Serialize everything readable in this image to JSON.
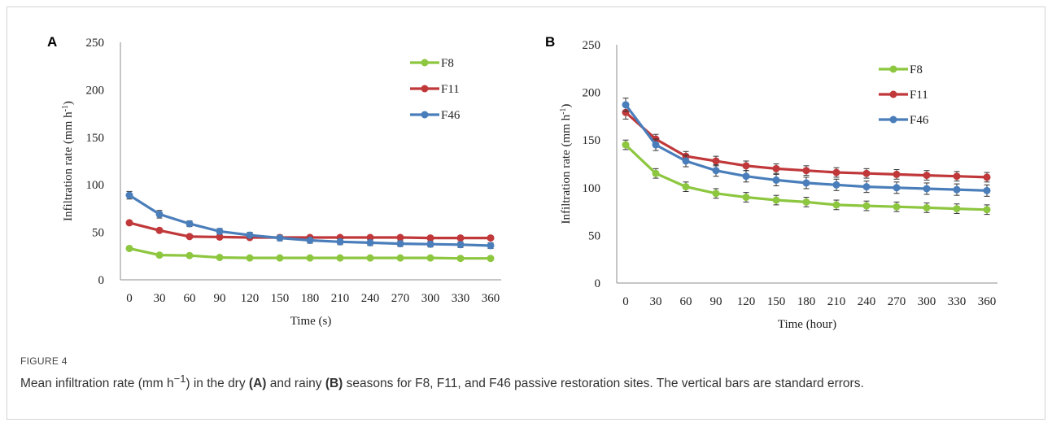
{
  "figure": {
    "label": "FIGURE 4",
    "caption": {
      "t1": "Mean infiltration rate (mm h",
      "sup": "−1",
      "t2": ") in the dry ",
      "bA": "(A)",
      "t3": " and rainy ",
      "bB": "(B)",
      "t4": " seasons for F8, F11, and F46 passive restoration sites. The vertical bars are standard errors."
    }
  },
  "chart_data": [
    {
      "panel": "A",
      "type": "line",
      "xlabel": "Time (s)",
      "ylabel": "Infiltration rate (mm h⁻¹)",
      "x": [
        0,
        30,
        60,
        90,
        120,
        150,
        180,
        210,
        240,
        270,
        300,
        330,
        360
      ],
      "ylim": [
        0,
        250
      ],
      "yticks": [
        0,
        50,
        100,
        150,
        200,
        250
      ],
      "legend": "top-right",
      "grid": false,
      "series": [
        {
          "name": "F8",
          "color": "#8dc63f",
          "values": [
            33,
            26,
            25.5,
            23.5,
            23,
            23,
            23,
            23,
            23,
            23,
            23,
            22.5,
            22.5
          ],
          "errors": [
            0,
            0,
            0,
            0,
            0,
            0,
            0,
            0,
            0,
            0,
            0,
            0,
            0
          ]
        },
        {
          "name": "F11",
          "color": "#c0383a",
          "values": [
            60,
            52,
            45.5,
            45,
            44.5,
            44.5,
            44.5,
            44.5,
            44.5,
            44.5,
            44,
            44,
            44
          ],
          "errors": [
            0,
            0,
            0,
            0,
            0,
            0,
            0,
            0,
            0,
            0,
            0,
            0,
            0
          ]
        },
        {
          "name": "F46",
          "color": "#4a7ebb",
          "values": [
            89,
            69,
            59,
            51,
            47,
            44,
            41.5,
            40,
            39,
            38,
            37.5,
            37,
            36
          ],
          "errors": [
            4,
            4,
            3,
            3,
            3,
            3,
            3,
            3,
            3,
            3,
            3,
            3,
            3
          ]
        }
      ]
    },
    {
      "panel": "B",
      "type": "line",
      "xlabel": "Time (hour)",
      "ylabel": "Infiltration rate (mm h⁻¹)",
      "x": [
        0,
        30,
        60,
        90,
        120,
        150,
        180,
        210,
        240,
        270,
        300,
        330,
        360
      ],
      "ylim": [
        0,
        250
      ],
      "yticks": [
        0,
        50,
        100,
        150,
        200,
        250
      ],
      "legend": "top-right",
      "grid": false,
      "series": [
        {
          "name": "F8",
          "color": "#8dc63f",
          "values": [
            145,
            115,
            101,
            94,
            90,
            87,
            85,
            82,
            81,
            80,
            79,
            78,
            77
          ],
          "errors": [
            5,
            5,
            5,
            5,
            5,
            5,
            5,
            5,
            5,
            5,
            5,
            5,
            5
          ]
        },
        {
          "name": "F11",
          "color": "#c0383a",
          "values": [
            179,
            151,
            133,
            128,
            123,
            120,
            118,
            116,
            115,
            114,
            113,
            112,
            111
          ],
          "errors": [
            7,
            5,
            5,
            5,
            5,
            5,
            5,
            5,
            5,
            5,
            5,
            5,
            5
          ]
        },
        {
          "name": "F46",
          "color": "#4a7ebb",
          "values": [
            187,
            145,
            128,
            118,
            112,
            108,
            105,
            103,
            101,
            100,
            99,
            98,
            97
          ],
          "errors": [
            7,
            6,
            6,
            6,
            6,
            6,
            6,
            6,
            6,
            6,
            6,
            6,
            6
          ]
        }
      ]
    }
  ]
}
